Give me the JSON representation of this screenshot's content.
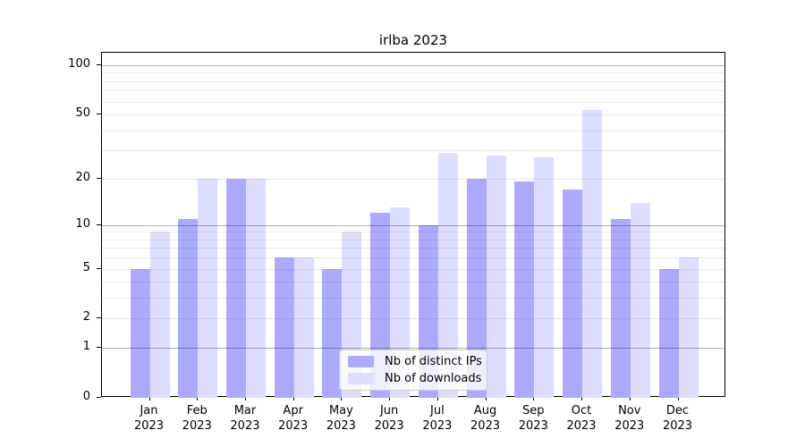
{
  "title": "irlba 2023",
  "colors": {
    "bar_distinct_ips": "#aaaaff",
    "bar_downloads": "#ddddff",
    "axis": "#000000",
    "grid_major": "#b0b0b0",
    "grid_minor": "#ebebeb",
    "legend_border": "#cccccc"
  },
  "legend": {
    "entries": [
      {
        "label": "Nb of distinct IPs",
        "color_key": "bar_distinct_ips"
      },
      {
        "label": "Nb of downloads",
        "color_key": "bar_downloads"
      }
    ],
    "position": "lower center"
  },
  "chart_data": {
    "type": "bar",
    "title": "irlba 2023",
    "categories": [
      "Jan 2023",
      "Feb 2023",
      "Mar 2023",
      "Apr 2023",
      "May 2023",
      "Jun 2023",
      "Jul 2023",
      "Aug 2023",
      "Sep 2023",
      "Oct 2023",
      "Nov 2023",
      "Dec 2023"
    ],
    "series": [
      {
        "name": "Nb of distinct IPs",
        "color": "#aaaaff",
        "values": [
          5,
          11,
          20,
          6,
          5,
          12,
          10,
          20,
          19,
          17,
          11,
          5
        ]
      },
      {
        "name": "Nb of downloads",
        "color": "#ddddff",
        "values": [
          9,
          20,
          20,
          6,
          9,
          13,
          29,
          28,
          27,
          53,
          14,
          6
        ]
      }
    ],
    "xlabel": "",
    "ylabel": "",
    "yscale": "log1p",
    "ylim": [
      0,
      119
    ],
    "yticks": [
      100,
      50,
      20,
      10,
      5,
      2,
      1,
      0
    ],
    "major_gridlines": [
      1,
      10,
      100
    ],
    "minor_gridlines": [
      2,
      3,
      4,
      5,
      6,
      7,
      8,
      9,
      20,
      30,
      40,
      50,
      60,
      70,
      80,
      90
    ],
    "grid": "on",
    "legend_position": "lower center"
  }
}
